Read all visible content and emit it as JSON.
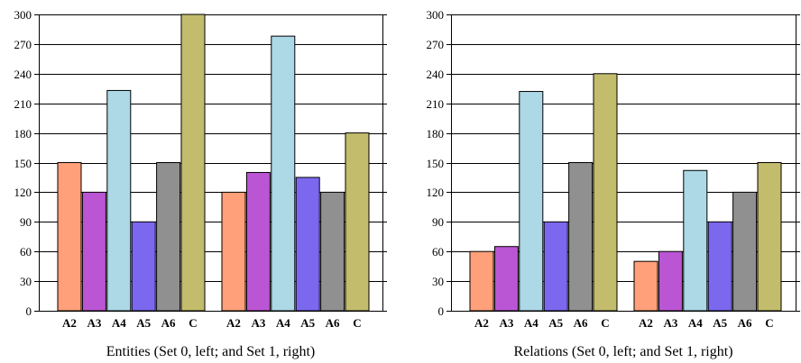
{
  "chart_data": [
    {
      "type": "bar",
      "caption": "Entities (Set 0, left; and Set 1, right)",
      "groups": [
        "Set 0",
        "Set 1"
      ],
      "categories": [
        "A2",
        "A3",
        "A4",
        "A5",
        "A6",
        "C"
      ],
      "series": [
        {
          "values": [
            150,
            120,
            223,
            90,
            150,
            300
          ]
        },
        {
          "values": [
            120,
            140,
            278,
            135,
            120,
            180
          ]
        }
      ],
      "ylim": [
        0,
        300
      ],
      "yticks": [
        0,
        30,
        60,
        90,
        120,
        150,
        180,
        210,
        240,
        270,
        300
      ],
      "grid": true
    },
    {
      "type": "bar",
      "caption": "Relations (Set 0, left; and Set 1, right)",
      "groups": [
        "Set 0",
        "Set 1"
      ],
      "categories": [
        "A2",
        "A3",
        "A4",
        "A5",
        "A6",
        "C"
      ],
      "series": [
        {
          "values": [
            60,
            65,
            222,
            90,
            150,
            240
          ]
        },
        {
          "values": [
            50,
            60,
            142,
            90,
            120,
            150
          ]
        }
      ],
      "ylim": [
        0,
        300
      ],
      "yticks": [
        0,
        30,
        60,
        90,
        120,
        150,
        180,
        210,
        240,
        270,
        300
      ],
      "grid": true
    }
  ],
  "category_colors": [
    "#ffa07a",
    "#ba55d3",
    "#add8e6",
    "#7b68ee",
    "#909090",
    "#c2bc6c"
  ]
}
